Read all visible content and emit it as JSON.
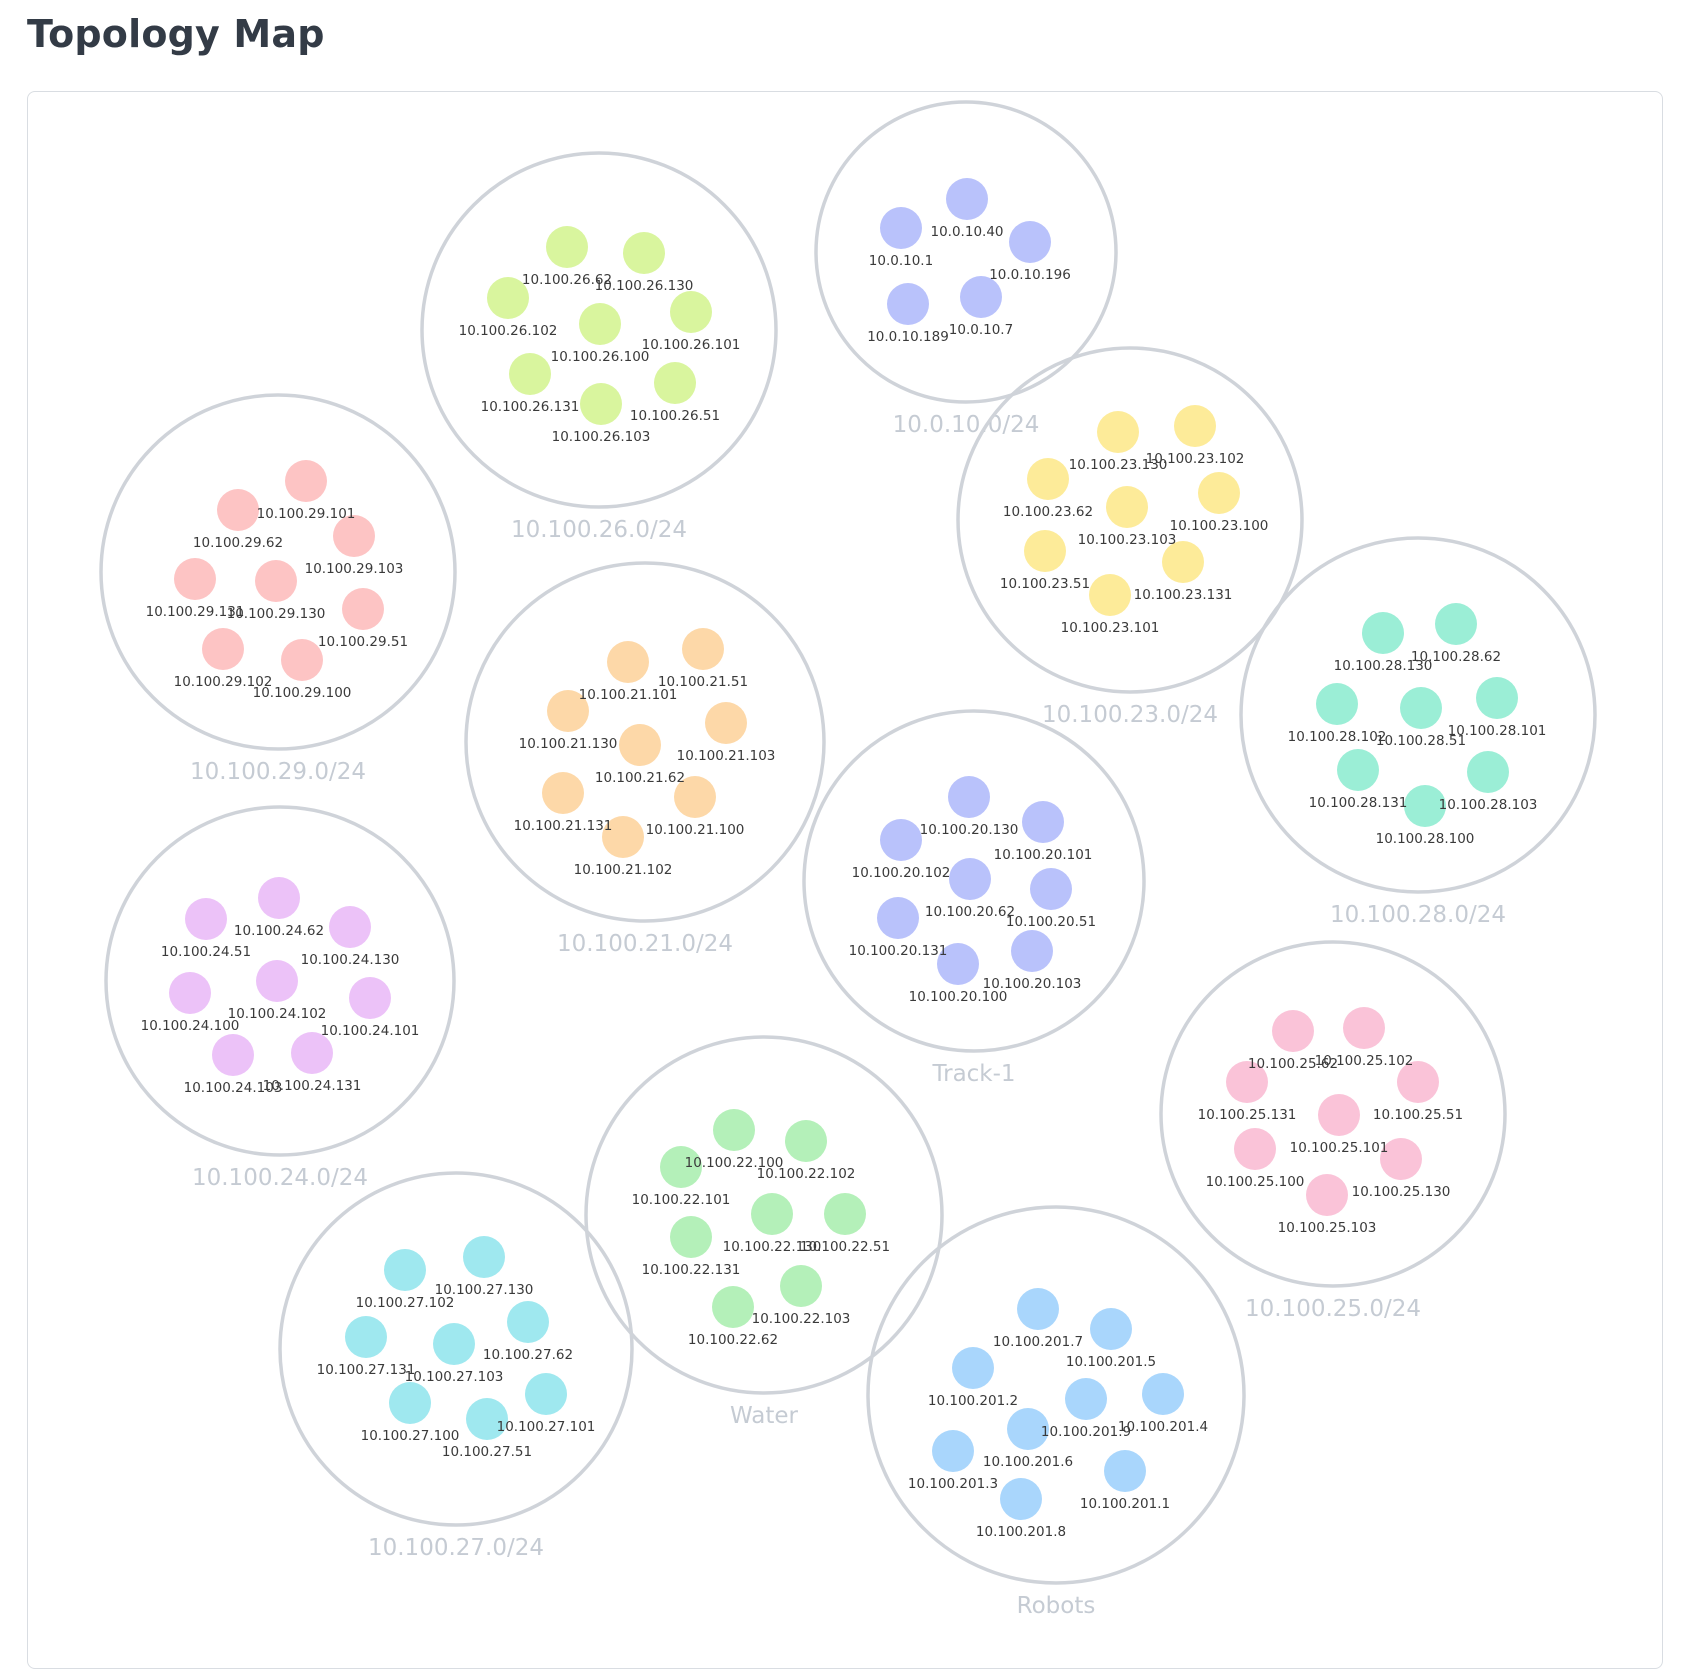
{
  "page": {
    "title": "Topology Map"
  },
  "map": {
    "ring_color": "#cfd3d9",
    "label_color": "#c5cbd3",
    "groups": [
      {
        "label": "10.0.10.0/24",
        "color": "#b9c2fb",
        "nodes": [
          "10.0.10.40",
          "10.0.10.1",
          "10.0.10.196",
          "10.0.10.189",
          "10.0.10.7"
        ]
      },
      {
        "label": "10.100.26.0/24",
        "color": "#d9f59e",
        "nodes": [
          "10.100.26.62",
          "10.100.26.130",
          "10.100.26.102",
          "10.100.26.100",
          "10.100.26.101",
          "10.100.26.131",
          "10.100.26.103",
          "10.100.26.51"
        ]
      },
      {
        "label": "10.100.23.0/24",
        "color": "#fdeb99",
        "nodes": [
          "10.100.23.130",
          "10.100.23.102",
          "10.100.23.62",
          "10.100.23.103",
          "10.100.23.100",
          "10.100.23.51",
          "10.100.23.131",
          "10.100.23.101"
        ]
      },
      {
        "label": "10.100.29.0/24",
        "color": "#fdc4c4",
        "nodes": [
          "10.100.29.101",
          "10.100.29.62",
          "10.100.29.103",
          "10.100.29.131",
          "10.100.29.130",
          "10.100.29.51",
          "10.100.29.102",
          "10.100.29.100"
        ]
      },
      {
        "label": "10.100.21.0/24",
        "color": "#fdd8a8",
        "nodes": [
          "10.100.21.101",
          "10.100.21.51",
          "10.100.21.130",
          "10.100.21.62",
          "10.100.21.103",
          "10.100.21.131",
          "10.100.21.100",
          "10.100.21.102"
        ]
      },
      {
        "label": "10.100.28.0/24",
        "color": "#9beed6",
        "nodes": [
          "10.100.28.130",
          "10.100.28.62",
          "10.100.28.102",
          "10.100.28.51",
          "10.100.28.101",
          "10.100.28.131",
          "10.100.28.103",
          "10.100.28.100"
        ]
      },
      {
        "label": "Track-1",
        "color": "#b9c2fb",
        "nodes": [
          "10.100.20.130",
          "10.100.20.101",
          "10.100.20.102",
          "10.100.20.62",
          "10.100.20.51",
          "10.100.20.131",
          "10.100.20.100",
          "10.100.20.103"
        ]
      },
      {
        "label": "10.100.24.0/24",
        "color": "#ecc2f8",
        "nodes": [
          "10.100.24.62",
          "10.100.24.51",
          "10.100.24.130",
          "10.100.24.102",
          "10.100.24.100",
          "10.100.24.101",
          "10.100.24.103",
          "10.100.24.131"
        ]
      },
      {
        "label": "10.100.25.0/24",
        "color": "#fac3d8",
        "nodes": [
          "10.100.25.62",
          "10.100.25.102",
          "10.100.25.131",
          "10.100.25.101",
          "10.100.25.51",
          "10.100.25.100",
          "10.100.25.130",
          "10.100.25.103"
        ]
      },
      {
        "label": "Water",
        "color": "#b4f0b9",
        "nodes": [
          "10.100.22.100",
          "10.100.22.102",
          "10.100.22.101",
          "10.100.22.130",
          "10.100.22.51",
          "10.100.22.131",
          "10.100.22.103",
          "10.100.22.62"
        ]
      },
      {
        "label": "10.100.27.0/24",
        "color": "#9fe8ef",
        "nodes": [
          "10.100.27.130",
          "10.100.27.102",
          "10.100.27.62",
          "10.100.27.131",
          "10.100.27.103",
          "10.100.27.101",
          "10.100.27.100",
          "10.100.27.51"
        ]
      },
      {
        "label": "Robots",
        "color": "#a9d6fc",
        "nodes": [
          "10.100.201.7",
          "10.100.201.5",
          "10.100.201.2",
          "10.100.201.9",
          "10.100.201.4",
          "10.100.201.6",
          "10.100.201.3",
          "10.100.201.1",
          "10.100.201.8"
        ]
      }
    ]
  }
}
